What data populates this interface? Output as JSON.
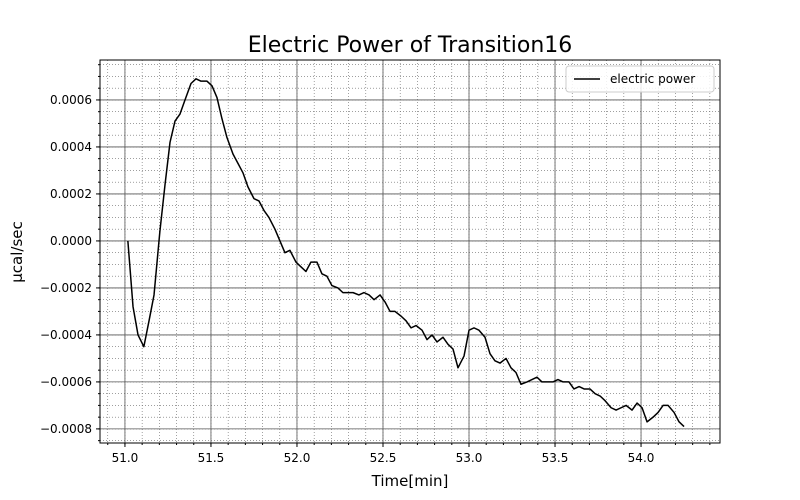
{
  "chart_data": {
    "type": "line",
    "title": "Electric Power of Transition16",
    "x_label": "Time[min]",
    "y_label": "µcal/sec",
    "x": [
      51.017,
      51.047,
      51.076,
      51.11,
      51.14,
      51.169,
      51.203,
      51.233,
      51.262,
      51.291,
      51.32,
      51.349,
      51.384,
      51.413,
      51.442,
      51.477,
      51.506,
      51.535,
      51.564,
      51.593,
      51.628,
      51.657,
      51.686,
      51.715,
      51.75,
      51.779,
      51.808,
      51.837,
      51.872,
      51.901,
      51.93,
      51.959,
      51.994,
      52.023,
      52.052,
      52.081,
      52.116,
      52.145,
      52.174,
      52.203,
      52.238,
      52.267,
      52.296,
      52.326,
      52.36,
      52.39,
      52.419,
      52.448,
      52.483,
      52.512,
      52.541,
      52.57,
      52.605,
      52.634,
      52.663,
      52.692,
      52.727,
      52.756,
      52.785,
      52.814,
      52.849,
      52.878,
      52.907,
      52.936,
      52.971,
      53.0,
      53.029,
      53.058,
      53.093,
      53.122,
      53.151,
      53.18,
      53.215,
      53.244,
      53.273,
      53.302,
      53.337,
      53.366,
      53.395,
      53.424,
      53.459,
      53.488,
      53.517,
      53.547,
      53.581,
      53.61,
      53.64,
      53.669,
      53.703,
      53.733,
      53.762,
      53.791,
      53.826,
      53.855,
      53.884,
      53.913,
      53.948,
      53.977,
      54.006,
      54.035,
      54.07,
      54.099,
      54.128,
      54.157,
      54.192,
      54.221,
      54.25
    ],
    "series": [
      {
        "name": "electric power",
        "color": "#000000",
        "values": [
          0,
          -0.00028,
          -0.0004,
          -0.00045,
          -0.00034,
          -0.00023,
          4e-05,
          0.00024,
          0.00042,
          0.00051,
          0.00054,
          0.0006,
          0.00067,
          0.00069,
          0.00068,
          0.00068,
          0.00066,
          0.00061,
          0.00052,
          0.00044,
          0.00037,
          0.00033,
          0.00029,
          0.00023,
          0.00018,
          0.00017,
          0.00013,
          0.0001,
          5e-05,
          0,
          -5e-05,
          -4e-05,
          -9e-05,
          -0.00011,
          -0.00013,
          -9e-05,
          -9e-05,
          -0.00014,
          -0.00015,
          -0.00019,
          -0.0002,
          -0.00022,
          -0.00022,
          -0.00022,
          -0.00023,
          -0.00022,
          -0.00023,
          -0.00025,
          -0.00023,
          -0.00026,
          -0.0003,
          -0.0003,
          -0.00032,
          -0.00034,
          -0.00037,
          -0.00036,
          -0.00038,
          -0.00042,
          -0.0004,
          -0.00043,
          -0.00041,
          -0.00044,
          -0.00046,
          -0.00054,
          -0.00049,
          -0.00038,
          -0.00037,
          -0.00038,
          -0.00041,
          -0.00048,
          -0.00051,
          -0.00052,
          -0.0005,
          -0.00054,
          -0.00056,
          -0.00061,
          -0.0006,
          -0.00059,
          -0.00058,
          -0.0006,
          -0.0006,
          -0.0006,
          -0.00059,
          -0.0006,
          -0.0006,
          -0.00063,
          -0.00062,
          -0.00063,
          -0.00063,
          -0.00065,
          -0.00066,
          -0.00068,
          -0.00071,
          -0.00072,
          -0.00071,
          -0.0007,
          -0.00072,
          -0.00069,
          -0.00071,
          -0.00077,
          -0.00075,
          -0.00073,
          -0.0007,
          -0.0007,
          -0.00073,
          -0.00077,
          -0.00079
        ]
      }
    ],
    "xlim": [
      50.855,
      54.459
    ],
    "ylim": [
      -0.00086,
      0.00077
    ],
    "xticks": [
      {
        "value": 51,
        "label": "51.0"
      },
      51.5,
      {
        "value": 52,
        "label": "52.0"
      },
      52.5,
      {
        "value": 53,
        "label": "53.0"
      },
      53.5,
      {
        "value": 54,
        "label": "54.0"
      }
    ],
    "yticks": [
      {
        "value": -0.0008,
        "label": "−0.0008"
      },
      {
        "value": -0.0006,
        "label": "−0.0006"
      },
      {
        "value": -0.0004,
        "label": "−0.0004"
      },
      {
        "value": -0.0002,
        "label": "−0.0002"
      },
      {
        "value": 0,
        "label": "0.0000"
      },
      {
        "value": 0.0002,
        "label": "0.0002"
      },
      {
        "value": 0.0004,
        "label": "0.0004"
      },
      {
        "value": 0.0006,
        "label": "0.0006"
      }
    ],
    "grid": true,
    "minor_grid": true,
    "legend": "upper right"
  }
}
